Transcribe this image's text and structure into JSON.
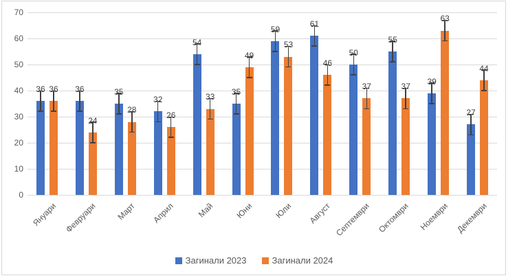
{
  "chart_data": {
    "type": "bar",
    "title": "",
    "xlabel": "",
    "ylabel": "",
    "categories": [
      "Януари",
      "Февруари",
      "Март",
      "Април",
      "Май",
      "Юни",
      "Юли",
      "Август",
      "Септември",
      "Октомври",
      "Ноември",
      "Декември"
    ],
    "series": [
      {
        "name": "Загинали 2023",
        "color": "#4472C4",
        "values": [
          36,
          36,
          35,
          32,
          54,
          35,
          59,
          61,
          50,
          55,
          39,
          27
        ]
      },
      {
        "name": "Загинали 2024",
        "color": "#ED7D31",
        "values": [
          36,
          24,
          28,
          26,
          33,
          49,
          53,
          46,
          37,
          37,
          63,
          44
        ]
      }
    ],
    "ylim": [
      0,
      70
    ],
    "y_ticks": [
      0,
      10,
      20,
      30,
      40,
      50,
      60,
      70
    ],
    "grid": true,
    "legend_position": "bottom",
    "data_labels": true,
    "error_bars": {
      "visible": true,
      "amount": 4
    },
    "colors": {
      "gridline": "#d9d9d9",
      "axis_text": "#595959",
      "data_label": "#404040",
      "error_bar": "#404040",
      "frame_border": "#d6d6d6",
      "background": "#ffffff"
    }
  }
}
